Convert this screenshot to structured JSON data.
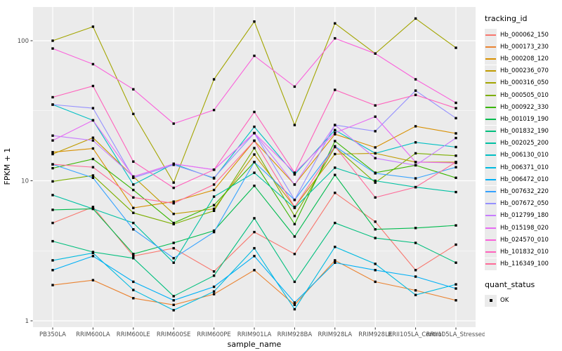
{
  "legend": {
    "tracking_title": "tracking_id",
    "quant_title": "quant_status",
    "quant_ok_label": "OK"
  },
  "chart_data": {
    "type": "line",
    "title": "",
    "xlabel": "sample_name",
    "ylabel": "FPKM + 1",
    "y_scale": "log10",
    "y_range": [
      1,
      160
    ],
    "grid": "on",
    "legend_position": "right",
    "panel_background": "#ebebeb",
    "gridline_color": "#ffffff",
    "point_color": "#000000",
    "y_ticks": [
      {
        "value": 100,
        "label": "100"
      },
      {
        "value": 10,
        "label": "10"
      },
      {
        "value": 1,
        "label": "1"
      }
    ],
    "y_minor_ticks": [
      3.1623,
      31.623
    ],
    "categories": [
      "PB350LA",
      "RRIM600LA",
      "RRIM600LE",
      "RRIM600SE",
      "RRIM600PE",
      "RRIM901LA",
      "RRIM928BA",
      "RRIM928LA",
      "RRIM928LE",
      "RRII105LA_Control",
      "RRII105LA_Stressed"
    ],
    "series": [
      {
        "name": "Hb_000062_150",
        "color": "#F8766D",
        "values": [
          5.0,
          6.5,
          2.9,
          3.3,
          2.25,
          4.3,
          3.0,
          8.2,
          5.1,
          2.3,
          3.5
        ]
      },
      {
        "name": "Hb_000173_230",
        "color": "#EA8331",
        "values": [
          1.8,
          1.95,
          1.45,
          1.3,
          1.55,
          2.3,
          1.3,
          2.7,
          1.9,
          1.65,
          1.4
        ]
      },
      {
        "name": "Hb_000208_120",
        "color": "#D89000",
        "values": [
          16.0,
          17.0,
          6.4,
          7.1,
          8.6,
          19.3,
          9.4,
          21.5,
          17.3,
          24.5,
          21.8
        ]
      },
      {
        "name": "Hb_000236_070",
        "color": "#C09B00",
        "values": [
          15.5,
          20.3,
          10.7,
          5.8,
          6.3,
          15.4,
          6.5,
          15.5,
          15.7,
          13.6,
          13.6
        ]
      },
      {
        "name": "Hb_000316_050",
        "color": "#A3A500",
        "values": [
          100,
          126,
          30,
          9.7,
          53,
          137,
          25,
          133,
          81,
          144,
          89
        ]
      },
      {
        "name": "Hb_000505_010",
        "color": "#7CAE00",
        "values": [
          9.9,
          10.9,
          5.9,
          4.9,
          6.1,
          17.1,
          5.6,
          17.4,
          9.7,
          15.7,
          15.1
        ]
      },
      {
        "name": "Hb_000922_330",
        "color": "#39B600",
        "values": [
          12.3,
          14.3,
          8.6,
          5.0,
          6.7,
          13.6,
          4.9,
          19.2,
          11.4,
          12.9,
          10.5
        ]
      },
      {
        "name": "Hb_001019_190",
        "color": "#00BB4E",
        "values": [
          6.2,
          6.3,
          3.0,
          3.6,
          4.4,
          9.2,
          4.0,
          11.0,
          4.5,
          4.6,
          4.8
        ]
      },
      {
        "name": "Hb_001832_190",
        "color": "#00BF7D",
        "values": [
          3.7,
          3.1,
          2.8,
          1.5,
          2.1,
          5.4,
          1.9,
          5.0,
          3.9,
          3.6,
          2.6
        ]
      },
      {
        "name": "Hb_002025_200",
        "color": "#00C1A3",
        "values": [
          7.9,
          6.3,
          5.0,
          2.6,
          7.7,
          11.4,
          6.4,
          12.4,
          10.0,
          9.0,
          8.3
        ]
      },
      {
        "name": "Hb_006130_010",
        "color": "#00BFC4",
        "values": [
          35,
          27,
          9.4,
          13.2,
          10.4,
          24.3,
          11.1,
          23.0,
          15.7,
          18.8,
          17.4
        ]
      },
      {
        "name": "Hb_006371_010",
        "color": "#00BAE0",
        "values": [
          2.7,
          3.05,
          1.66,
          1.19,
          1.62,
          3.3,
          1.21,
          3.37,
          2.55,
          1.53,
          1.82
        ]
      },
      {
        "name": "Hb_006472_010",
        "color": "#00B0F6",
        "values": [
          2.3,
          2.9,
          1.9,
          1.4,
          1.75,
          2.9,
          1.35,
          2.6,
          2.3,
          2.07,
          1.7
        ]
      },
      {
        "name": "Hb_007632_220",
        "color": "#35A2FF",
        "values": [
          13.1,
          10.5,
          4.5,
          2.8,
          4.3,
          13.6,
          7.3,
          17.6,
          11.3,
          10.4,
          12.5
        ]
      },
      {
        "name": "Hb_007672_050",
        "color": "#9590FF",
        "values": [
          35,
          33,
          10.5,
          13.0,
          10.5,
          21.9,
          7.3,
          25.0,
          22.6,
          44.0,
          28.0
        ]
      },
      {
        "name": "Hb_012799_180",
        "color": "#C77CFF",
        "values": [
          21.0,
          19.4,
          10.7,
          13.2,
          12.0,
          21.9,
          9.4,
          25.0,
          14.5,
          12.9,
          20.2
        ]
      },
      {
        "name": "Hb_015198_020",
        "color": "#E76BF3",
        "values": [
          19.4,
          27.0,
          10.7,
          13.2,
          12.0,
          21.9,
          11.4,
          22.0,
          28.7,
          13.6,
          13.4
        ]
      },
      {
        "name": "Hb_024570_010",
        "color": "#FA62DB",
        "values": [
          88,
          68,
          45,
          25.6,
          32,
          78,
          47,
          104,
          81,
          53,
          36
        ]
      },
      {
        "name": "Hb_101832_010",
        "color": "#FF62BC",
        "values": [
          39.5,
          47.5,
          13.7,
          8.9,
          12.0,
          31.0,
          11.4,
          44.6,
          34.5,
          41.0,
          33.0
        ]
      },
      {
        "name": "Hb_116349_100",
        "color": "#FF6A98",
        "values": [
          13.1,
          12.5,
          7.6,
          6.9,
          9.4,
          19.3,
          6.5,
          17.6,
          7.6,
          9.0,
          13.6
        ]
      }
    ]
  }
}
